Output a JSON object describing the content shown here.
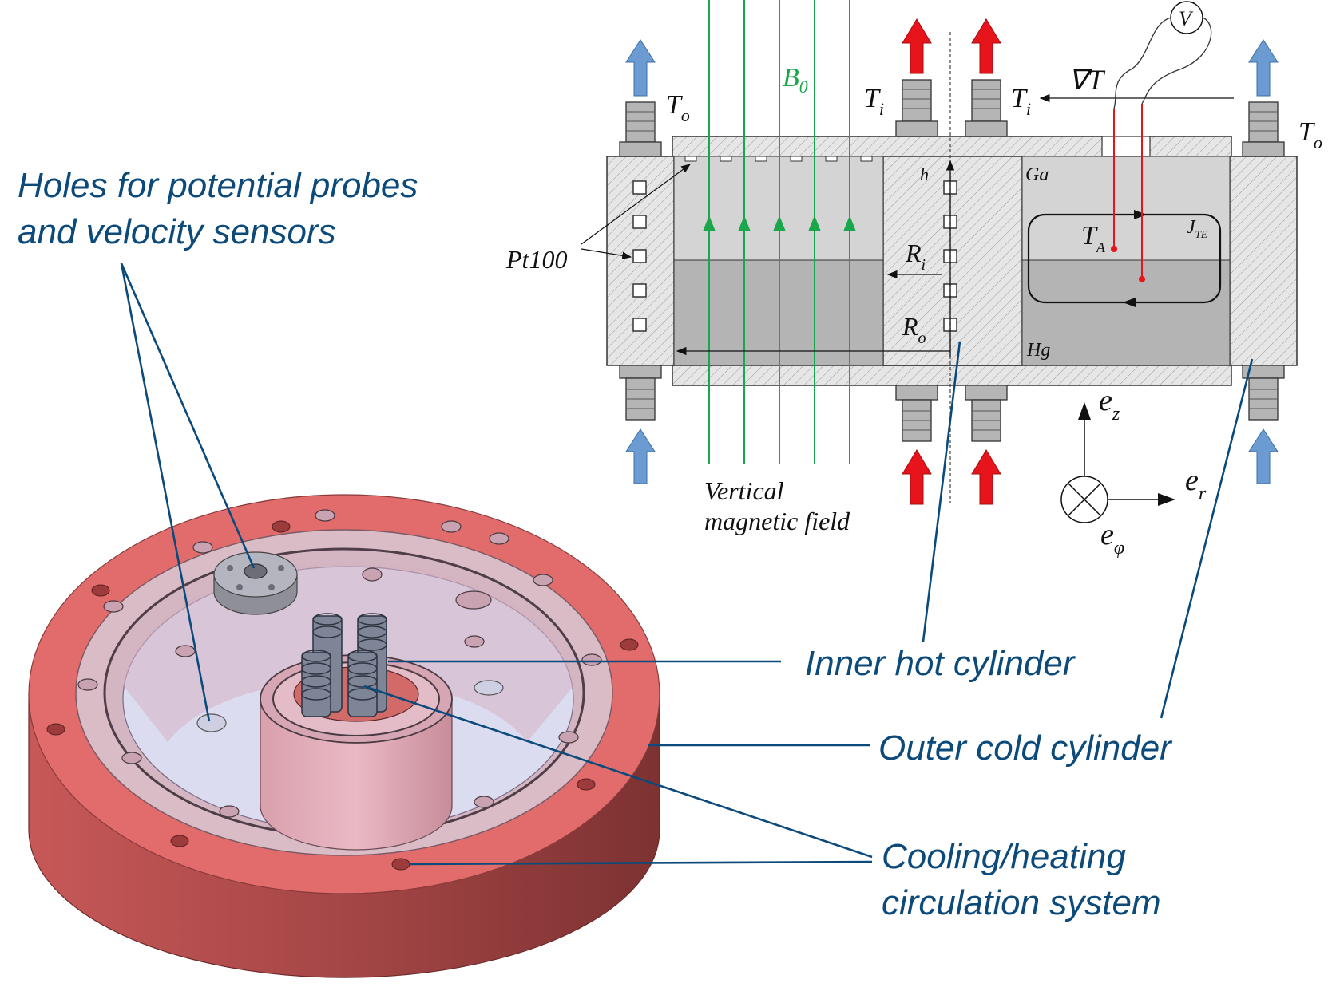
{
  "callouts": {
    "holes_line1": "Holes for potential probes",
    "holes_line2": "and velocity sensors",
    "inner": "Inner hot cylinder",
    "outer": "Outer cold cylinder",
    "cooling_line1": "Cooling/heating",
    "cooling_line2": "circulation system"
  },
  "schematic": {
    "B0": "B",
    "B0_sub": "0",
    "To": "T",
    "To_sub": "o",
    "Ti": "T",
    "Ti_sub": "i",
    "gradT": "∇T",
    "V": "V",
    "h": "h",
    "Ga": "Ga",
    "Hg": "Hg",
    "Ri": "R",
    "Ri_sub": "i",
    "Ro": "R",
    "Ro_sub": "o",
    "TA": "T",
    "TA_sub": "A",
    "JTE": "J",
    "JTE_sub": "TE",
    "Pt100": "Pt100",
    "vertical_line1": "Vertical",
    "vertical_line2": "magnetic field",
    "ez": "e",
    "ez_sub": "z",
    "er": "e",
    "er_sub": "r",
    "ephi": "e",
    "ephi_sub": "φ"
  },
  "colors": {
    "callout": "#0b4a7a",
    "field": "#1aa64a",
    "hot_arrow": "#e8141b",
    "cold_arrow": "#6b9bd1",
    "ring": "#e26c6c"
  }
}
